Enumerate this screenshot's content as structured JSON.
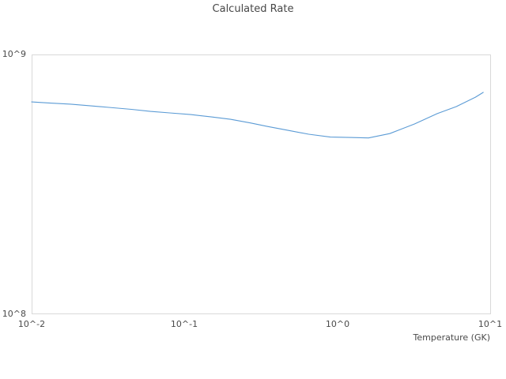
{
  "title": "Calculated Rate",
  "axes": {
    "x_label": "Temperature (GK)",
    "x_ticks": [
      "10^-2",
      "10^-1",
      "10^0",
      "10^1"
    ],
    "y_ticks": [
      "10^8",
      "10^9"
    ]
  },
  "colors": {
    "line": "#5b9bd5",
    "plot_border": "#d9d9d9",
    "text": "#4a4a4a"
  },
  "chart_data": {
    "type": "line",
    "title": "Calculated Rate",
    "xlabel": "Temperature (GK)",
    "ylabel": "",
    "x_scale": "log",
    "y_scale": "log",
    "xlim": [
      0.01,
      10
    ],
    "ylim": [
      100000000.0,
      1000000000.0
    ],
    "grid": false,
    "legend": false,
    "x": [
      0.01,
      0.013,
      0.018,
      0.024,
      0.032,
      0.045,
      0.06,
      0.08,
      0.11,
      0.15,
      0.2,
      0.27,
      0.35,
      0.48,
      0.65,
      0.9,
      1.2,
      1.6,
      2.2,
      3.2,
      4.5,
      6.0,
      8.0,
      9.0
    ],
    "series": [
      {
        "name": "Calculated Rate",
        "values": [
          656000000.0,
          650000000.0,
          643000000.0,
          634000000.0,
          625000000.0,
          614000000.0,
          603000000.0,
          595000000.0,
          586000000.0,
          574000000.0,
          562000000.0,
          544000000.0,
          527000000.0,
          509000000.0,
          492000000.0,
          480000000.0,
          478000000.0,
          476000000.0,
          495000000.0,
          539000000.0,
          591000000.0,
          629000000.0,
          684000000.0,
          714000000.0
        ]
      }
    ]
  }
}
